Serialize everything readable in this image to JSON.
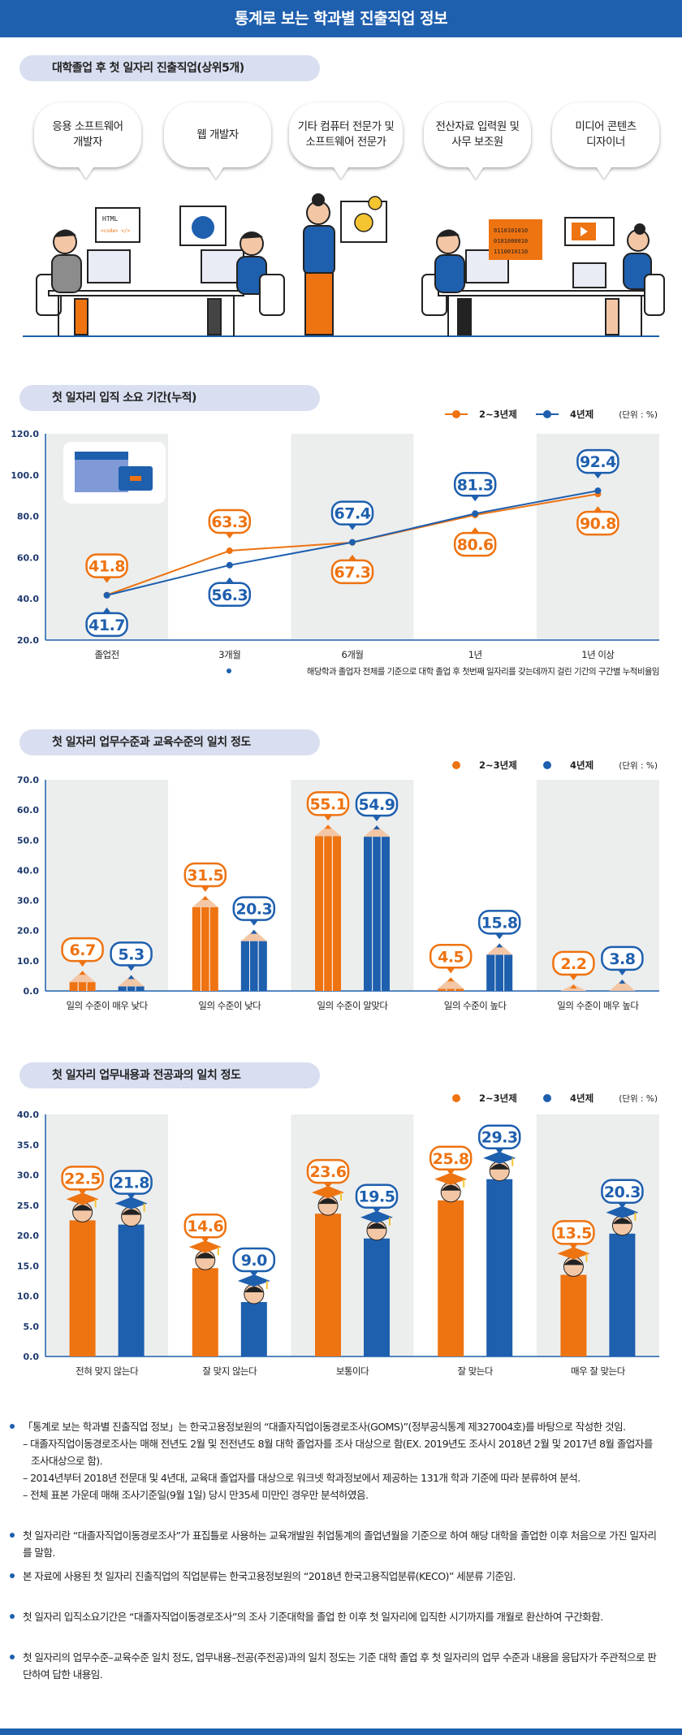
{
  "header": {
    "title": "통계로 보는 학과별 진출직업 정보"
  },
  "colors": {
    "orange": "#ee7311",
    "blue": "#1e5fae",
    "panel_gray": "#eceeee",
    "pill": "#d9dff0"
  },
  "sections": {
    "jobs": {
      "title": "대학졸업 후 첫 일자리 진출직업(상위5개)"
    },
    "period": {
      "title": "첫 일자리 입직 소요 기간(누적)"
    },
    "level": {
      "title": "첫 일자리 업무수준과 교육수준의 일치 정도"
    },
    "major": {
      "title": "첫 일자리 업무내용과 전공과의 일치 정도"
    }
  },
  "top_jobs": [
    {
      "label": "응용 소프트웨어\n개발자"
    },
    {
      "label": "웹 개발자"
    },
    {
      "label": "기타 컴퓨터 전문가 및\n소프트웨어 전문가"
    },
    {
      "label": "전산자료 입력원 및\n사무 보조원"
    },
    {
      "label": "미디어 콘텐츠\n디자이너"
    }
  ],
  "illustration": {
    "html_card_line1": "HTML",
    "html_card_line2": "<code> </>",
    "binary_line1": "0110101010",
    "binary_line2": "0101000010",
    "binary_line3": "1110010110"
  },
  "chart_data": [
    {
      "id": "period",
      "type": "line",
      "categories": [
        "졸업전",
        "3개월",
        "6개월",
        "1년",
        "1년 이상"
      ],
      "series": [
        {
          "name": "2~3년제",
          "values": [
            41.8,
            63.3,
            67.3,
            80.6,
            90.8
          ],
          "color": "#ee7311"
        },
        {
          "name": "4년제",
          "values": [
            41.7,
            56.3,
            67.4,
            81.3,
            92.4
          ],
          "color": "#1e5fae"
        }
      ],
      "ylim": [
        20,
        120
      ],
      "yticks": [
        "20.0",
        "40.0",
        "60.0",
        "80.0",
        "100.0",
        "120.0"
      ],
      "unit": "(단위 : %)",
      "footnote": "해당학과 졸업자 전체를 기준으로 대학 졸업 후 첫번째 일자리를 갖는데까지 걸린 기간의 구간별 누적비율임"
    },
    {
      "id": "level",
      "type": "bar",
      "categories": [
        "일의 수준이 매우 낮다",
        "일의 수준이 낮다",
        "일의 수준이 알맞다",
        "일의 수준이 높다",
        "일의 수준이 매우 높다"
      ],
      "series": [
        {
          "name": "2~3년제",
          "values": [
            6.7,
            31.5,
            55.1,
            4.5,
            2.2
          ],
          "color": "#ee7311"
        },
        {
          "name": "4년제",
          "values": [
            5.3,
            20.3,
            54.9,
            15.8,
            3.8
          ],
          "color": "#1e5fae"
        }
      ],
      "ylim": [
        0,
        70
      ],
      "yticks": [
        "0.0",
        "10.0",
        "20.0",
        "30.0",
        "40.0",
        "50.0",
        "60.0",
        "70.0"
      ],
      "unit": "(단위 : %)"
    },
    {
      "id": "major",
      "type": "bar",
      "categories": [
        "전혀 맞지 않는다",
        "잘 맞지 않는다",
        "보통이다",
        "잘 맞는다",
        "매우 잘 맞는다"
      ],
      "series": [
        {
          "name": "2~3년제",
          "values": [
            22.5,
            14.6,
            23.6,
            25.8,
            13.5
          ],
          "color": "#ee7311"
        },
        {
          "name": "4년제",
          "values": [
            21.8,
            9.0,
            19.5,
            29.3,
            20.3
          ],
          "color": "#1e5fae"
        }
      ],
      "ylim": [
        0,
        40
      ],
      "yticks": [
        "0.0",
        "5.0",
        "10.0",
        "15.0",
        "20.0",
        "25.0",
        "30.0",
        "35.0",
        "40.0"
      ],
      "unit": "(단위 : %)"
    }
  ],
  "notes": [
    {
      "text": "「통계로 보는 학과별 진출직업 정보」는 한국고용정보원의 “대졸자직업이동경로조사(GOMS)”(정부공식통계 제327004호)를 바탕으로 작성한 것임.",
      "subs": [
        "– 대졸자직업이동경로조사는 매해 전년도 2월 및 전전년도 8월 대학 졸업자를 조사 대상으로 함(EX. 2019년도 조사시 2018년 2월 및 2017년 8월 졸업자를 조사대상으로 함).",
        "– 2014년부터 2018년 전문대 및 4년대, 교육대 졸업자를 대상으로 워크넷 학과정보에서 제공하는 131개 학과 기준에 따라 분류하여 분석.",
        "– 전체 표본 가운데 매해 조사기준일(9월 1일) 당시 만35세 미만인 경우만 분석하였음."
      ]
    },
    {
      "text": "첫 일자리란 “대졸자직업이동경로조사”가 표집틀로 사용하는 교육개발원 취업통계의 졸업년월을 기준으로 하여 해당 대학을 졸업한 이후 처음으로 가진 일자리를 말함.",
      "subs": []
    },
    {
      "text": "본 자료에 사용된 첫 일자리 진출직업의 직업분류는 한국고용정보원의 “2018년 한국고용직업분류(KECO)” 세분류 기준임.",
      "subs": []
    },
    {
      "text": "첫 일자리 입직소요기간은 “대졸자직업이동경로조사”의 조사 기준대학을 졸업 한 이후 첫 일자리에 입직한 시기까지를 개월로 환산하여 구간화함.",
      "subs": []
    },
    {
      "text": "첫 일자리의 업무수준–교육수준 일치 정도, 업무내용–전공(주전공)과의 일치 정도는 기준 대학 졸업 후 첫 일자리의 업무 수준과 내용을 응답자가 주관적으로 판단하여 답한 내용임.",
      "subs": []
    }
  ]
}
